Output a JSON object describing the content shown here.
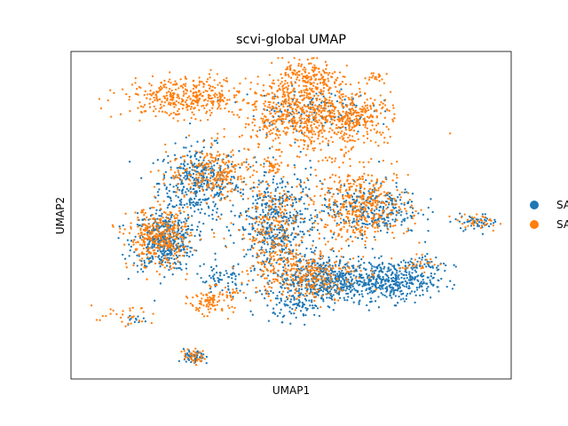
{
  "chart_data": {
    "type": "scatter",
    "title": "scvi-global UMAP",
    "xlabel": "UMAP1",
    "ylabel": "UMAP2",
    "xlim": [
      0,
      10
    ],
    "ylim": [
      0,
      10
    ],
    "grid": false,
    "ticks_shown": false,
    "legend_placement": "right, clipped at image edge",
    "series": [
      {
        "name": "SA",
        "color": "#1f77b4",
        "clusters": [
          {
            "cx": 2.9,
            "cy": 6.0,
            "sx": 0.45,
            "sy": 0.55,
            "n": 380
          },
          {
            "cx": 2.1,
            "cy": 4.2,
            "sx": 0.35,
            "sy": 0.45,
            "n": 420
          },
          {
            "cx": 4.7,
            "cy": 4.6,
            "sx": 0.45,
            "sy": 0.9,
            "n": 520
          },
          {
            "cx": 5.8,
            "cy": 3.0,
            "sx": 0.55,
            "sy": 0.35,
            "n": 500
          },
          {
            "cx": 7.3,
            "cy": 3.0,
            "sx": 0.5,
            "sy": 0.3,
            "n": 360
          },
          {
            "cx": 6.8,
            "cy": 5.2,
            "sx": 0.55,
            "sy": 0.4,
            "n": 300
          },
          {
            "cx": 5.4,
            "cy": 8.2,
            "sx": 0.7,
            "sy": 0.35,
            "n": 140
          },
          {
            "cx": 8.1,
            "cy": 3.5,
            "sx": 0.25,
            "sy": 0.12,
            "n": 45
          },
          {
            "cx": 9.2,
            "cy": 4.8,
            "sx": 0.25,
            "sy": 0.12,
            "n": 45
          },
          {
            "cx": 2.8,
            "cy": 0.65,
            "sx": 0.12,
            "sy": 0.12,
            "n": 55
          },
          {
            "cx": 5.2,
            "cy": 2.2,
            "sx": 0.3,
            "sy": 0.2,
            "n": 70
          },
          {
            "cx": 1.5,
            "cy": 1.8,
            "sx": 0.12,
            "sy": 0.08,
            "n": 12
          },
          {
            "cx": 3.4,
            "cy": 3.0,
            "sx": 0.3,
            "sy": 0.25,
            "n": 60
          }
        ]
      },
      {
        "name": "SA",
        "color": "#ff7f0e",
        "clusters": [
          {
            "cx": 2.6,
            "cy": 8.6,
            "sx": 0.7,
            "sy": 0.3,
            "n": 380
          },
          {
            "cx": 5.4,
            "cy": 8.0,
            "sx": 0.75,
            "sy": 0.55,
            "n": 650
          },
          {
            "cx": 5.3,
            "cy": 9.1,
            "sx": 0.4,
            "sy": 0.35,
            "n": 220
          },
          {
            "cx": 6.5,
            "cy": 8.0,
            "sx": 0.4,
            "sy": 0.3,
            "n": 160
          },
          {
            "cx": 3.3,
            "cy": 6.3,
            "sx": 0.55,
            "sy": 0.4,
            "n": 260
          },
          {
            "cx": 2.0,
            "cy": 4.3,
            "sx": 0.35,
            "sy": 0.45,
            "n": 360
          },
          {
            "cx": 6.6,
            "cy": 5.3,
            "sx": 0.55,
            "sy": 0.55,
            "n": 420
          },
          {
            "cx": 5.3,
            "cy": 3.2,
            "sx": 0.6,
            "sy": 0.4,
            "n": 300
          },
          {
            "cx": 3.2,
            "cy": 2.4,
            "sx": 0.25,
            "sy": 0.2,
            "n": 110
          },
          {
            "cx": 4.6,
            "cy": 4.6,
            "sx": 0.4,
            "sy": 0.8,
            "n": 240
          },
          {
            "cx": 4.6,
            "cy": 6.5,
            "sx": 0.12,
            "sy": 0.1,
            "n": 30
          },
          {
            "cx": 9.2,
            "cy": 4.8,
            "sx": 0.25,
            "sy": 0.12,
            "n": 35
          },
          {
            "cx": 6.9,
            "cy": 9.2,
            "sx": 0.2,
            "sy": 0.08,
            "n": 20
          },
          {
            "cx": 1.2,
            "cy": 1.9,
            "sx": 0.35,
            "sy": 0.15,
            "n": 30
          },
          {
            "cx": 2.8,
            "cy": 0.7,
            "sx": 0.12,
            "sy": 0.12,
            "n": 40
          },
          {
            "cx": 7.9,
            "cy": 3.5,
            "sx": 0.2,
            "sy": 0.12,
            "n": 25
          }
        ]
      }
    ]
  },
  "legend": [
    {
      "label": "SA",
      "color": "#1f77b4"
    },
    {
      "label": "SA",
      "color": "#ff7f0e"
    }
  ]
}
